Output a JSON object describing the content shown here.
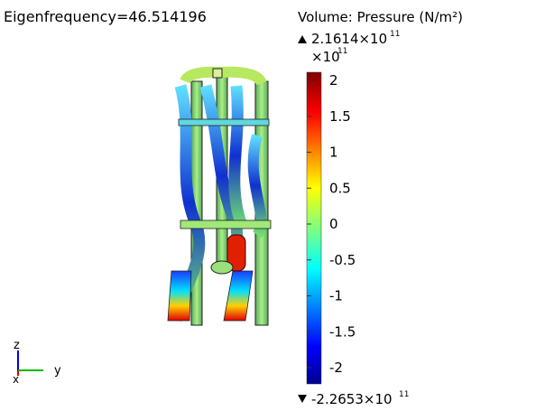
{
  "title": "Eigenfrequency=46.514196",
  "legend": {
    "title": "Volume: Pressure (N/m²)",
    "max_label": {
      "mantissa": "2.1614×10",
      "exponent": "11"
    },
    "multiplier": {
      "base": "×10",
      "exponent": "11"
    },
    "tick_labels": [
      "2",
      "1.5",
      "1",
      "0.5",
      "0",
      "-0.5",
      "-1",
      "-1.5",
      "-2"
    ],
    "min_label": {
      "mantissa": "-2.2653×10",
      "exponent": "11"
    }
  },
  "axes": {
    "z": "z",
    "y": "y",
    "x": "x"
  }
}
